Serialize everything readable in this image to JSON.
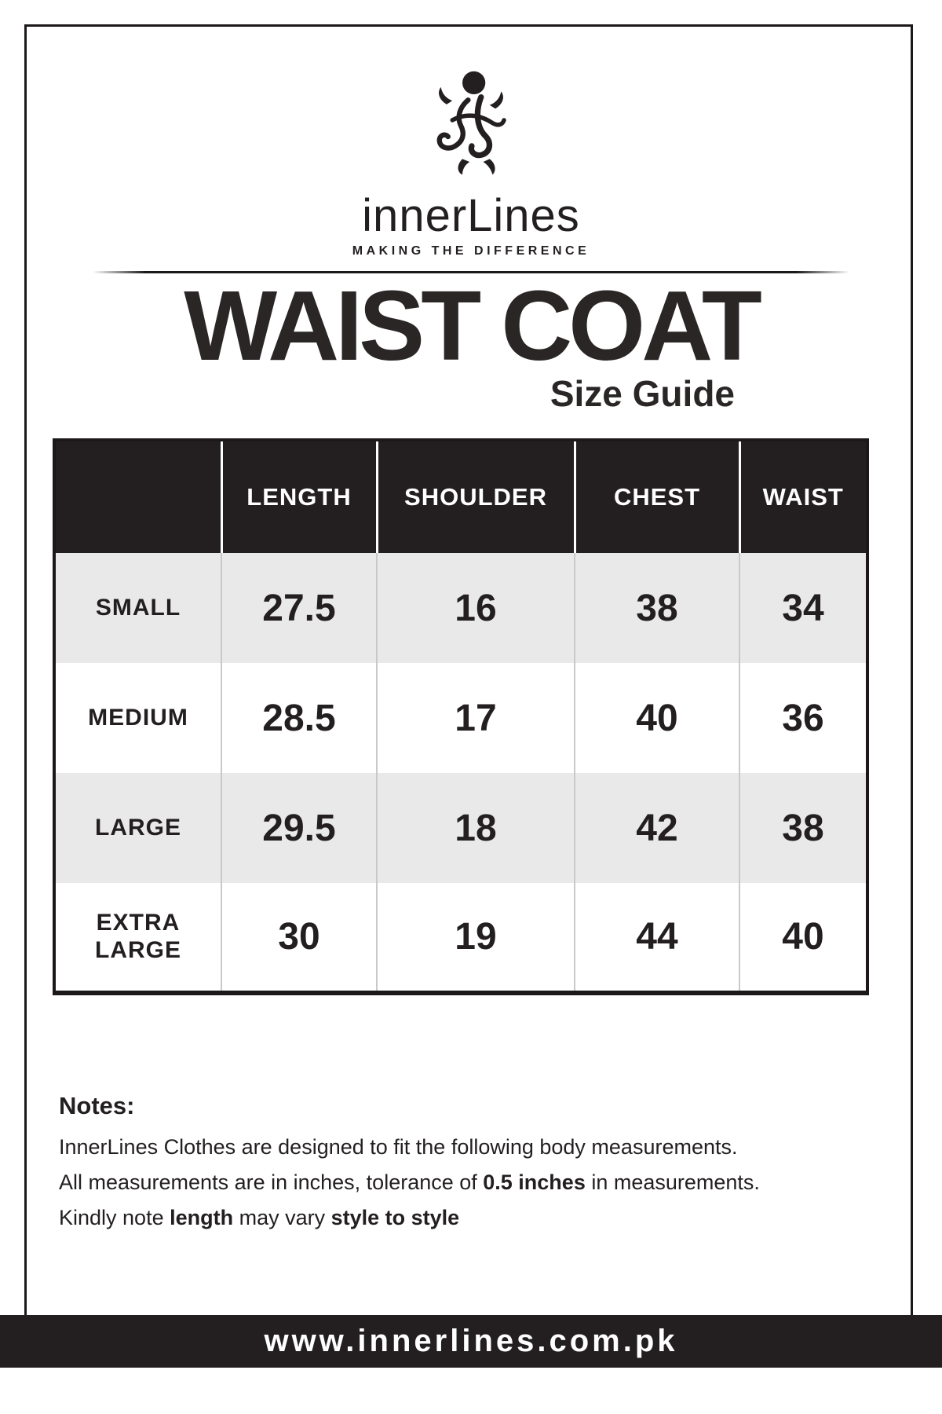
{
  "brand": {
    "name": "innerLines",
    "tagline": "MAKING THE DIFFERENCE",
    "monogram_icon": "ornate-iL-monogram"
  },
  "title": "WAIST COAT",
  "subtitle": "Size Guide",
  "size_table": {
    "columns": [
      "LENGTH",
      "SHOULDER",
      "CHEST",
      "WAIST"
    ],
    "rows": [
      {
        "size": "SMALL",
        "values": [
          "27.5",
          "16",
          "38",
          "34"
        ]
      },
      {
        "size": "MEDIUM",
        "values": [
          "28.5",
          "17",
          "40",
          "36"
        ]
      },
      {
        "size": "LARGE",
        "values": [
          "29.5",
          "18",
          "42",
          "38"
        ]
      },
      {
        "size": "EXTRA LARGE",
        "values": [
          "30",
          "19",
          "44",
          "40"
        ]
      }
    ]
  },
  "notes": {
    "heading": "Notes:",
    "line1": "InnerLines Clothes are designed to fit the following body measurements.",
    "line2_prefix": "All measurements are in inches, tolerance of ",
    "line2_bold": "0.5 inches",
    "line2_suffix": " in measurements.",
    "line3_prefix": "Kindly note ",
    "line3_bold1": "length",
    "line3_mid": " may vary ",
    "line3_bold2": "style to style"
  },
  "footer": {
    "url": "www.innerlines.com.pk"
  },
  "colors": {
    "ink": "#231f20",
    "row_alt": "#e9e9e9",
    "header_bg": "#231f20",
    "header_text": "#ffffff"
  }
}
